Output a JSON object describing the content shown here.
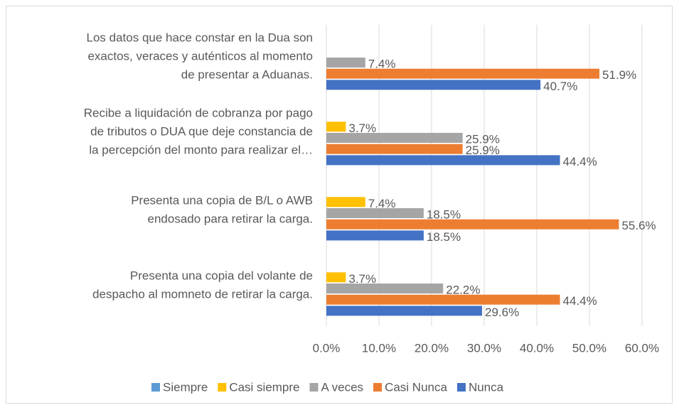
{
  "chart_data": {
    "type": "hbar",
    "categories": [
      [
        "Los datos que hace constar en la Dua son",
        "exactos, veraces y auténticos al momento",
        "de presentar a Aduanas."
      ],
      [
        "Recibe a liquidación de cobranza por pago",
        "de tributos o DUA que deje constancia de",
        "la percepción del monto para realizar el…"
      ],
      [
        "Presenta una copia de B/L o AWB",
        "endosado para retirar la carga."
      ],
      [
        "Presenta una copia del volante de",
        "despacho al momneto de retirar la carga."
      ]
    ],
    "series": [
      {
        "name": "Siempre",
        "color": "#5b9bd5",
        "values": [
          null,
          null,
          null,
          null
        ]
      },
      {
        "name": "Casi siempre",
        "color": "#ffc000",
        "values": [
          null,
          3.7,
          7.4,
          3.7
        ],
        "value_labels": [
          null,
          "3.7%",
          "7.4%",
          "3.7%"
        ]
      },
      {
        "name": "A veces",
        "color": "#a5a5a5",
        "values": [
          7.4,
          25.9,
          18.5,
          22.2
        ],
        "value_labels": [
          "7.4%",
          "25.9%",
          "18.5%",
          "22.2%"
        ]
      },
      {
        "name": "Casi Nunca",
        "color": "#ed7d31",
        "values": [
          51.9,
          25.9,
          55.6,
          44.4
        ],
        "value_labels": [
          "51.9%",
          "25.9%",
          "55.6%",
          "44.4%"
        ]
      },
      {
        "name": "Nunca",
        "color": "#4472c4",
        "values": [
          40.7,
          44.4,
          18.5,
          29.6
        ],
        "value_labels": [
          "40.7%",
          "44.4%",
          "18.5%",
          "29.6%"
        ]
      }
    ],
    "xlim": [
      0,
      60
    ],
    "xticks": [
      {
        "value": 0,
        "label": "0.0%"
      },
      {
        "value": 10,
        "label": "10.0%"
      },
      {
        "value": 20,
        "label": "20.0%"
      },
      {
        "value": 30,
        "label": "30.0%"
      },
      {
        "value": 40,
        "label": "40.0%"
      },
      {
        "value": 50,
        "label": "50.0%"
      },
      {
        "value": 60,
        "label": "60.0%"
      }
    ],
    "grid": true,
    "legend": "bottom"
  }
}
